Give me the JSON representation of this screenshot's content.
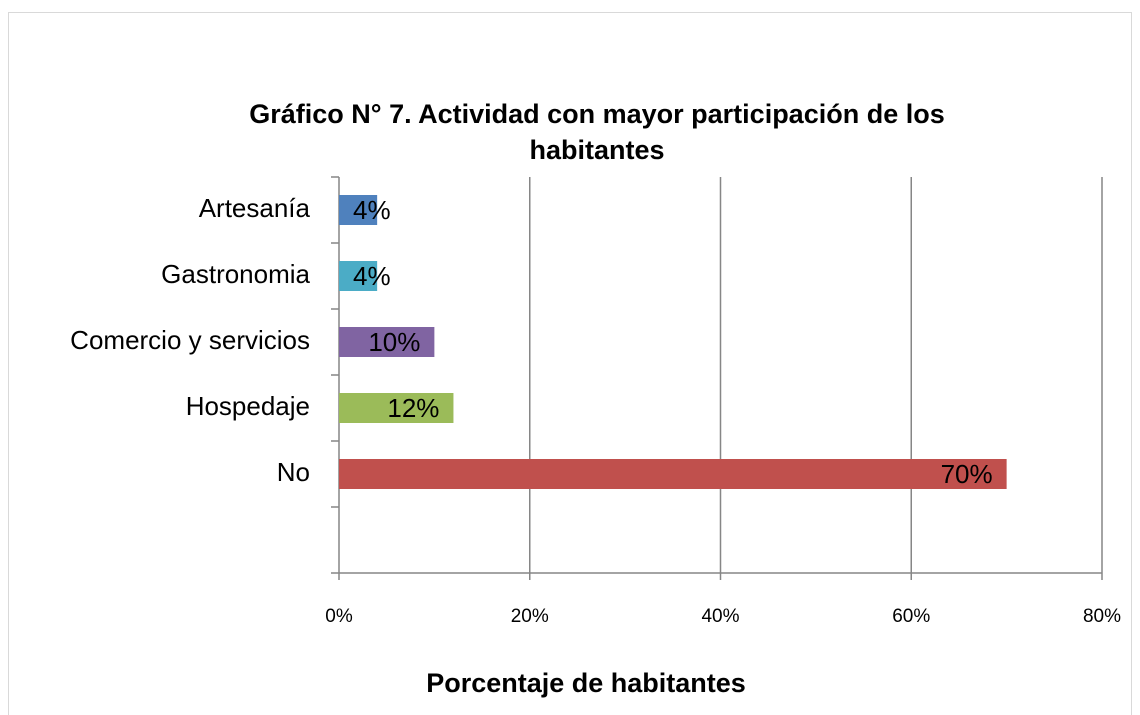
{
  "chart_data": {
    "type": "bar",
    "orientation": "horizontal",
    "title": "Gráfico N° 7. Actividad con mayor participación de los habitantes",
    "xlabel": "Porcentaje de habitantes",
    "categories": [
      "Artesanía",
      "Gastronomia",
      "Comercio y servicios",
      "Hospedaje",
      "No",
      null
    ],
    "values": [
      4,
      4,
      10,
      12,
      70,
      null
    ],
    "value_labels": [
      "4%",
      "4%",
      "10%",
      "12%",
      "70%",
      null
    ],
    "colors": [
      "#4f81bd",
      "#4bacc6",
      "#8064a2",
      "#9bbb59",
      "#c0504d",
      null
    ],
    "xlim": [
      0,
      80
    ],
    "xticks": [
      {
        "value": 0,
        "label": "0%"
      },
      {
        "value": 20,
        "label": "20%"
      },
      {
        "value": 40,
        "label": "40%"
      },
      {
        "value": 60,
        "label": "60%"
      },
      {
        "value": 80,
        "label": "80%"
      }
    ],
    "grid": true
  }
}
